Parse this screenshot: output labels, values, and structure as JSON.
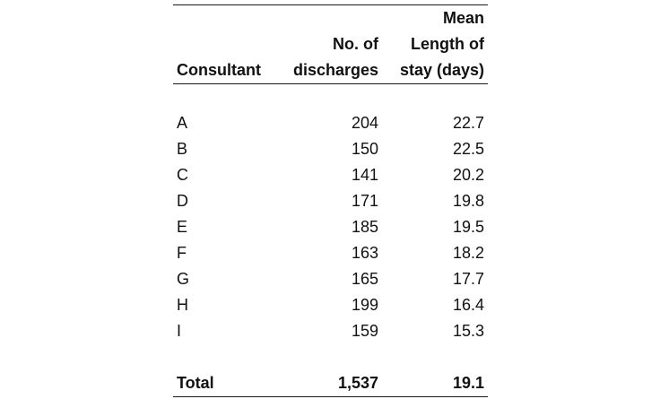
{
  "table": {
    "header": {
      "consultant": "Consultant",
      "discharges_line1": "No. of",
      "discharges_line2": "discharges",
      "los_line1": "Mean",
      "los_line2": "Length of",
      "los_line3": "stay (days)"
    },
    "rows": [
      {
        "consultant": "A",
        "discharges": "204",
        "mean_los": "22.7"
      },
      {
        "consultant": "B",
        "discharges": "150",
        "mean_los": "22.5"
      },
      {
        "consultant": "C",
        "discharges": "141",
        "mean_los": "20.2"
      },
      {
        "consultant": "D",
        "discharges": "171",
        "mean_los": "19.8"
      },
      {
        "consultant": "E",
        "discharges": "185",
        "mean_los": "19.5"
      },
      {
        "consultant": "F",
        "discharges": "163",
        "mean_los": "18.2"
      },
      {
        "consultant": "G",
        "discharges": "165",
        "mean_los": "17.7"
      },
      {
        "consultant": "H",
        "discharges": "199",
        "mean_los": "16.4"
      },
      {
        "consultant": "I",
        "discharges": "159",
        "mean_los": "15.3"
      }
    ],
    "total": {
      "label": "Total",
      "discharges": "1,537",
      "mean_los": "19.1"
    }
  }
}
